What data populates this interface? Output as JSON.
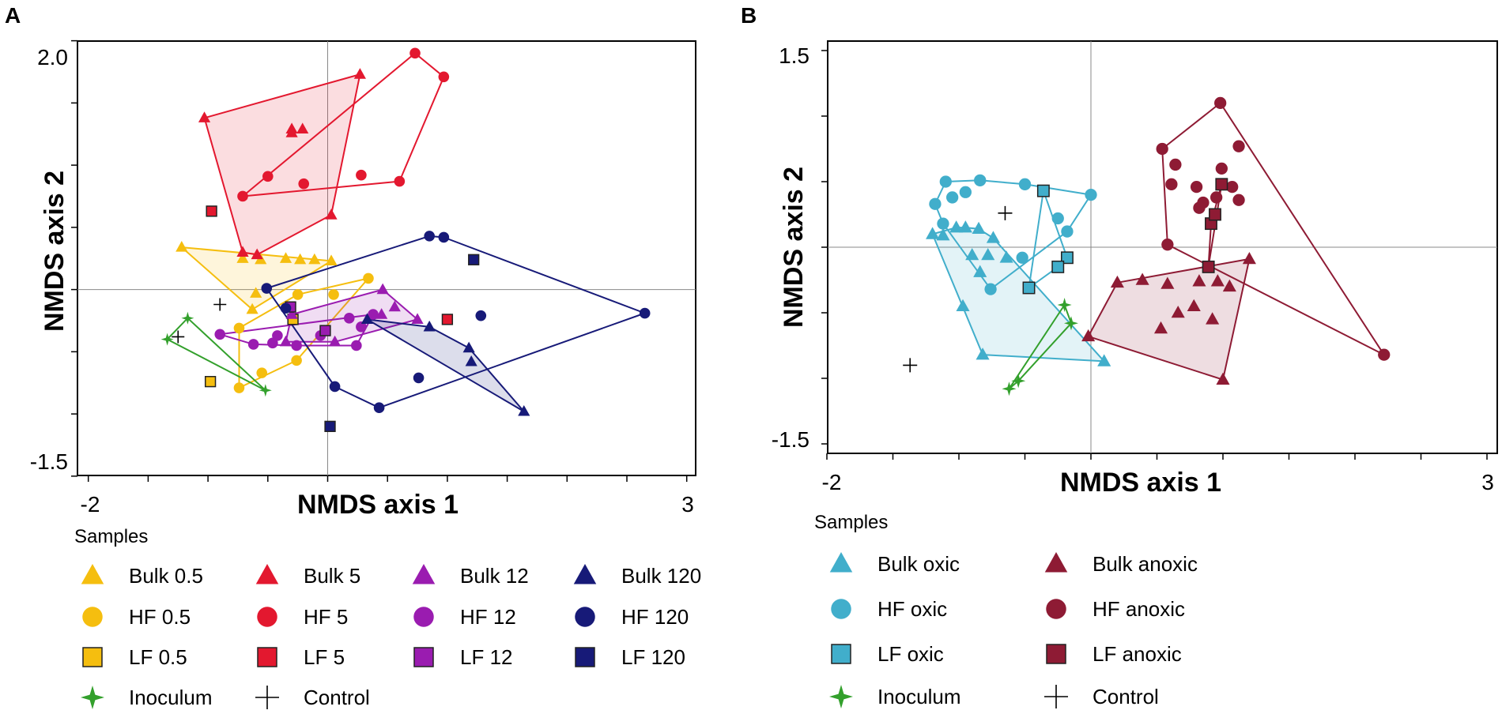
{
  "panels": {
    "A": {
      "letter": "A",
      "xlabel": "NMDS axis 1",
      "ylabel": "NMDS axis 2",
      "x_tick_labels": [
        "-2",
        "3"
      ],
      "y_tick_labels": [
        "2.0",
        "-1.5"
      ],
      "legend_title": "Samples"
    },
    "B": {
      "letter": "B",
      "xlabel": "NMDS axis 1",
      "ylabel": "NMDS axis 2",
      "x_tick_labels": [
        "-2",
        "3"
      ],
      "y_tick_labels": [
        "1.5",
        "-1.5"
      ],
      "legend_title": "Samples"
    }
  },
  "legend_A": [
    {
      "label": "Bulk 0.5",
      "shape": "triangle",
      "color": "#F5BE0F"
    },
    {
      "label": "HF 0.5",
      "shape": "circle",
      "color": "#F5BE0F"
    },
    {
      "label": "LF 0.5",
      "shape": "square",
      "color": "#F5BE0F"
    },
    {
      "label": "Inoculum",
      "shape": "star",
      "color": "#33A02C"
    },
    {
      "label": "Bulk 5",
      "shape": "triangle",
      "color": "#E3182F"
    },
    {
      "label": "HF 5",
      "shape": "circle",
      "color": "#E3182F"
    },
    {
      "label": "LF 5",
      "shape": "square",
      "color": "#E3182F"
    },
    {
      "label": "Control",
      "shape": "plus",
      "color": "#000000"
    },
    {
      "label": "Bulk 12",
      "shape": "triangle",
      "color": "#9A1CB0"
    },
    {
      "label": "HF 12",
      "shape": "circle",
      "color": "#9A1CB0"
    },
    {
      "label": "LF 12",
      "shape": "square",
      "color": "#9A1CB0"
    },
    {
      "label": "Bulk 120",
      "shape": "triangle",
      "color": "#171A78"
    },
    {
      "label": "HF 120",
      "shape": "circle",
      "color": "#171A78"
    },
    {
      "label": "LF 120",
      "shape": "square",
      "color": "#171A78"
    }
  ],
  "legend_B": [
    {
      "label": "Bulk oxic",
      "shape": "triangle",
      "color": "#41AECB"
    },
    {
      "label": "HF oxic",
      "shape": "circle",
      "color": "#41AECB"
    },
    {
      "label": "LF oxic",
      "shape": "square",
      "color": "#41AECB"
    },
    {
      "label": "Inoculum",
      "shape": "star",
      "color": "#33A02C"
    },
    {
      "label": "Bulk anoxic",
      "shape": "triangle",
      "color": "#8E1B34"
    },
    {
      "label": "HF anoxic",
      "shape": "circle",
      "color": "#8E1B34"
    },
    {
      "label": "LF anoxic",
      "shape": "square",
      "color": "#8E1B34"
    },
    {
      "label": "Control",
      "shape": "plus",
      "color": "#000000"
    }
  ],
  "chart_data": [
    {
      "panel": "A",
      "type": "scatter",
      "title": "",
      "xlabel": "NMDS axis 1",
      "ylabel": "NMDS axis 2",
      "xlim": [
        -2.0,
        3.0
      ],
      "ylim": [
        -1.5,
        2.0
      ],
      "reference_lines": {
        "x": 0,
        "y": 0
      },
      "series": [
        {
          "name": "Bulk 0.5",
          "shape": "triangle",
          "color": "#F5BE0F",
          "hull": "filled",
          "points": [
            [
              -1.22,
              0.34
            ],
            [
              -0.71,
              0.25
            ],
            [
              -0.35,
              0.25
            ],
            [
              -0.11,
              0.24
            ],
            [
              0.03,
              0.23
            ],
            [
              -0.56,
              0.24
            ],
            [
              -0.23,
              0.24
            ],
            [
              -0.63,
              -0.16
            ],
            [
              -0.6,
              -0.03
            ]
          ]
        },
        {
          "name": "HF 0.5",
          "shape": "circle",
          "color": "#F5BE0F",
          "hull": "outline",
          "points": [
            [
              -0.74,
              -0.31
            ],
            [
              -0.74,
              -0.79
            ],
            [
              -0.55,
              -0.67
            ],
            [
              -0.26,
              -0.57
            ],
            [
              0.05,
              -0.04
            ],
            [
              0.34,
              0.09
            ],
            [
              -0.25,
              -0.04
            ]
          ]
        },
        {
          "name": "LF 0.5",
          "shape": "square",
          "color": "#F5BE0F",
          "points": [
            [
              -0.98,
              -0.74
            ],
            [
              -0.29,
              -0.24
            ]
          ]
        },
        {
          "name": "Bulk 5",
          "shape": "triangle",
          "color": "#E3182F",
          "hull": "filled",
          "points": [
            [
              -1.03,
              1.38
            ],
            [
              0.27,
              1.73
            ],
            [
              0.03,
              0.6
            ],
            [
              -0.71,
              0.3
            ],
            [
              -0.59,
              0.28
            ],
            [
              -0.3,
              1.29
            ],
            [
              -0.21,
              1.29
            ],
            [
              -0.3,
              1.26
            ]
          ]
        },
        {
          "name": "HF 5",
          "shape": "circle",
          "color": "#E3182F",
          "hull": "outline",
          "points": [
            [
              -0.71,
              0.75
            ],
            [
              -0.5,
              0.91
            ],
            [
              -0.2,
              0.85
            ],
            [
              0.28,
              0.92
            ],
            [
              0.6,
              0.87
            ],
            [
              0.73,
              1.9
            ],
            [
              0.97,
              1.71
            ]
          ]
        },
        {
          "name": "LF 5",
          "shape": "square",
          "color": "#E3182F",
          "points": [
            [
              -0.97,
              0.63
            ],
            [
              1.0,
              -0.24
            ]
          ]
        },
        {
          "name": "Bulk 12",
          "shape": "triangle",
          "color": "#9A1CB0",
          "hull": "filled",
          "points": [
            [
              -0.3,
              -0.2
            ],
            [
              0.46,
              0.0
            ],
            [
              0.75,
              -0.24
            ],
            [
              -0.35,
              -0.42
            ],
            [
              0.06,
              -0.42
            ],
            [
              0.45,
              -0.2
            ],
            [
              0.56,
              -0.14
            ]
          ]
        },
        {
          "name": "HF 12",
          "shape": "circle",
          "color": "#9A1CB0",
          "hull": "outline",
          "points": [
            [
              -0.9,
              -0.36
            ],
            [
              -0.62,
              -0.44
            ],
            [
              -0.46,
              -0.43
            ],
            [
              -0.26,
              -0.45
            ],
            [
              -0.06,
              -0.37
            ],
            [
              0.18,
              -0.23
            ],
            [
              0.28,
              -0.3
            ],
            [
              0.38,
              -0.2
            ],
            [
              0.24,
              -0.45
            ],
            [
              -0.42,
              -0.37
            ]
          ]
        },
        {
          "name": "LF 12",
          "shape": "square",
          "color": "#9A1CB0",
          "points": [
            [
              -0.31,
              -0.14
            ],
            [
              -0.02,
              -0.33
            ]
          ]
        },
        {
          "name": "Bulk 120",
          "shape": "triangle",
          "color": "#171A78",
          "hull": "filled",
          "points": [
            [
              0.33,
              -0.24
            ],
            [
              1.18,
              -0.47
            ],
            [
              1.2,
              -0.58
            ],
            [
              1.64,
              -0.98
            ],
            [
              0.85,
              -0.3
            ]
          ]
        },
        {
          "name": "HF 120",
          "shape": "circle",
          "color": "#171A78",
          "hull": "outline",
          "points": [
            [
              -0.51,
              0.01
            ],
            [
              0.85,
              0.43
            ],
            [
              0.97,
              0.42
            ],
            [
              2.65,
              -0.19
            ],
            [
              1.28,
              -0.21
            ],
            [
              0.76,
              -0.71
            ],
            [
              0.43,
              -0.95
            ],
            [
              0.06,
              -0.78
            ],
            [
              -0.35,
              -0.15
            ]
          ]
        },
        {
          "name": "LF 120",
          "shape": "square",
          "color": "#171A78",
          "points": [
            [
              1.22,
              0.24
            ],
            [
              0.02,
              -1.1
            ]
          ]
        },
        {
          "name": "Inoculum",
          "shape": "star",
          "color": "#33A02C",
          "hull": "outline",
          "points": [
            [
              -1.34,
              -0.4
            ],
            [
              -1.17,
              -0.23
            ],
            [
              -0.52,
              -0.81
            ]
          ]
        },
        {
          "name": "Control",
          "shape": "plus",
          "color": "#000000",
          "points": [
            [
              -0.9,
              -0.12
            ],
            [
              -1.25,
              -0.38
            ]
          ]
        }
      ]
    },
    {
      "panel": "B",
      "type": "scatter",
      "title": "",
      "xlabel": "NMDS axis 1",
      "ylabel": "NMDS axis 2",
      "xlim": [
        -2.0,
        3.0
      ],
      "ylim": [
        -1.5,
        1.5
      ],
      "reference_lines": {
        "x": 0,
        "y": 0
      },
      "series": [
        {
          "name": "Bulk oxic",
          "shape": "triangle",
          "color": "#41AECB",
          "hull": "filled",
          "points": [
            [
              -1.2,
              0.1
            ],
            [
              -1.12,
              0.09
            ],
            [
              -1.02,
              0.15
            ],
            [
              -0.95,
              0.15
            ],
            [
              -0.85,
              0.14
            ],
            [
              -0.74,
              0.07
            ],
            [
              -0.9,
              -0.06
            ],
            [
              -0.78,
              -0.06
            ],
            [
              -0.64,
              -0.08
            ],
            [
              -0.84,
              -0.19
            ],
            [
              -0.97,
              -0.45
            ],
            [
              -0.82,
              -0.82
            ],
            [
              0.1,
              -0.87
            ]
          ]
        },
        {
          "name": "HF oxic",
          "shape": "circle",
          "color": "#41AECB",
          "hull": "outline",
          "points": [
            [
              -1.18,
              0.33
            ],
            [
              -1.1,
              0.5
            ],
            [
              -1.05,
              0.38
            ],
            [
              -0.84,
              0.51
            ],
            [
              -0.5,
              0.48
            ],
            [
              0.0,
              0.4
            ],
            [
              -0.25,
              0.22
            ],
            [
              -0.18,
              0.12
            ],
            [
              -0.52,
              -0.08
            ],
            [
              -0.76,
              -0.32
            ],
            [
              -1.12,
              0.18
            ],
            [
              -0.95,
              0.42
            ]
          ]
        },
        {
          "name": "LF oxic",
          "shape": "square",
          "color": "#41AECB",
          "hull": "outline",
          "points": [
            [
              -0.36,
              0.43
            ],
            [
              -0.18,
              -0.08
            ],
            [
              -0.25,
              -0.15
            ],
            [
              -0.47,
              -0.31
            ]
          ]
        },
        {
          "name": "Bulk anoxic",
          "shape": "triangle",
          "color": "#8E1B34",
          "hull": "filled",
          "points": [
            [
              -0.02,
              -0.68
            ],
            [
              0.2,
              -0.27
            ],
            [
              1.2,
              -0.09
            ],
            [
              1.0,
              -1.01
            ],
            [
              0.39,
              -0.25
            ],
            [
              0.58,
              -0.28
            ],
            [
              0.82,
              -0.26
            ],
            [
              0.96,
              -0.26
            ],
            [
              1.05,
              -0.3
            ],
            [
              0.66,
              -0.5
            ],
            [
              0.78,
              -0.45
            ],
            [
              0.92,
              -0.55
            ],
            [
              0.53,
              -0.62
            ]
          ]
        },
        {
          "name": "HF anoxic",
          "shape": "circle",
          "color": "#8E1B34",
          "hull": "outline",
          "points": [
            [
              0.54,
              0.75
            ],
            [
              0.98,
              1.1
            ],
            [
              1.12,
              0.77
            ],
            [
              2.22,
              -0.82
            ],
            [
              0.58,
              0.02
            ],
            [
              0.61,
              0.48
            ],
            [
              0.64,
              0.63
            ],
            [
              0.8,
              0.46
            ],
            [
              0.85,
              0.34
            ],
            [
              0.95,
              0.38
            ],
            [
              0.99,
              0.6
            ],
            [
              1.07,
              0.46
            ],
            [
              1.12,
              0.36
            ],
            [
              0.82,
              0.3
            ]
          ]
        },
        {
          "name": "LF anoxic",
          "shape": "square",
          "color": "#8E1B34",
          "hull": "outline",
          "points": [
            [
              0.89,
              -0.15
            ],
            [
              0.91,
              0.18
            ],
            [
              0.94,
              0.25
            ],
            [
              0.99,
              0.48
            ]
          ]
        },
        {
          "name": "Inoculum",
          "shape": "star",
          "color": "#33A02C",
          "hull": "outline",
          "points": [
            [
              -0.2,
              -0.44
            ],
            [
              -0.62,
              -1.08
            ],
            [
              -0.55,
              -1.02
            ],
            [
              -0.15,
              -0.58
            ]
          ]
        },
        {
          "name": "Control",
          "shape": "plus",
          "color": "#000000",
          "points": [
            [
              -0.65,
              0.26
            ],
            [
              -1.37,
              -0.9
            ]
          ]
        }
      ]
    }
  ]
}
